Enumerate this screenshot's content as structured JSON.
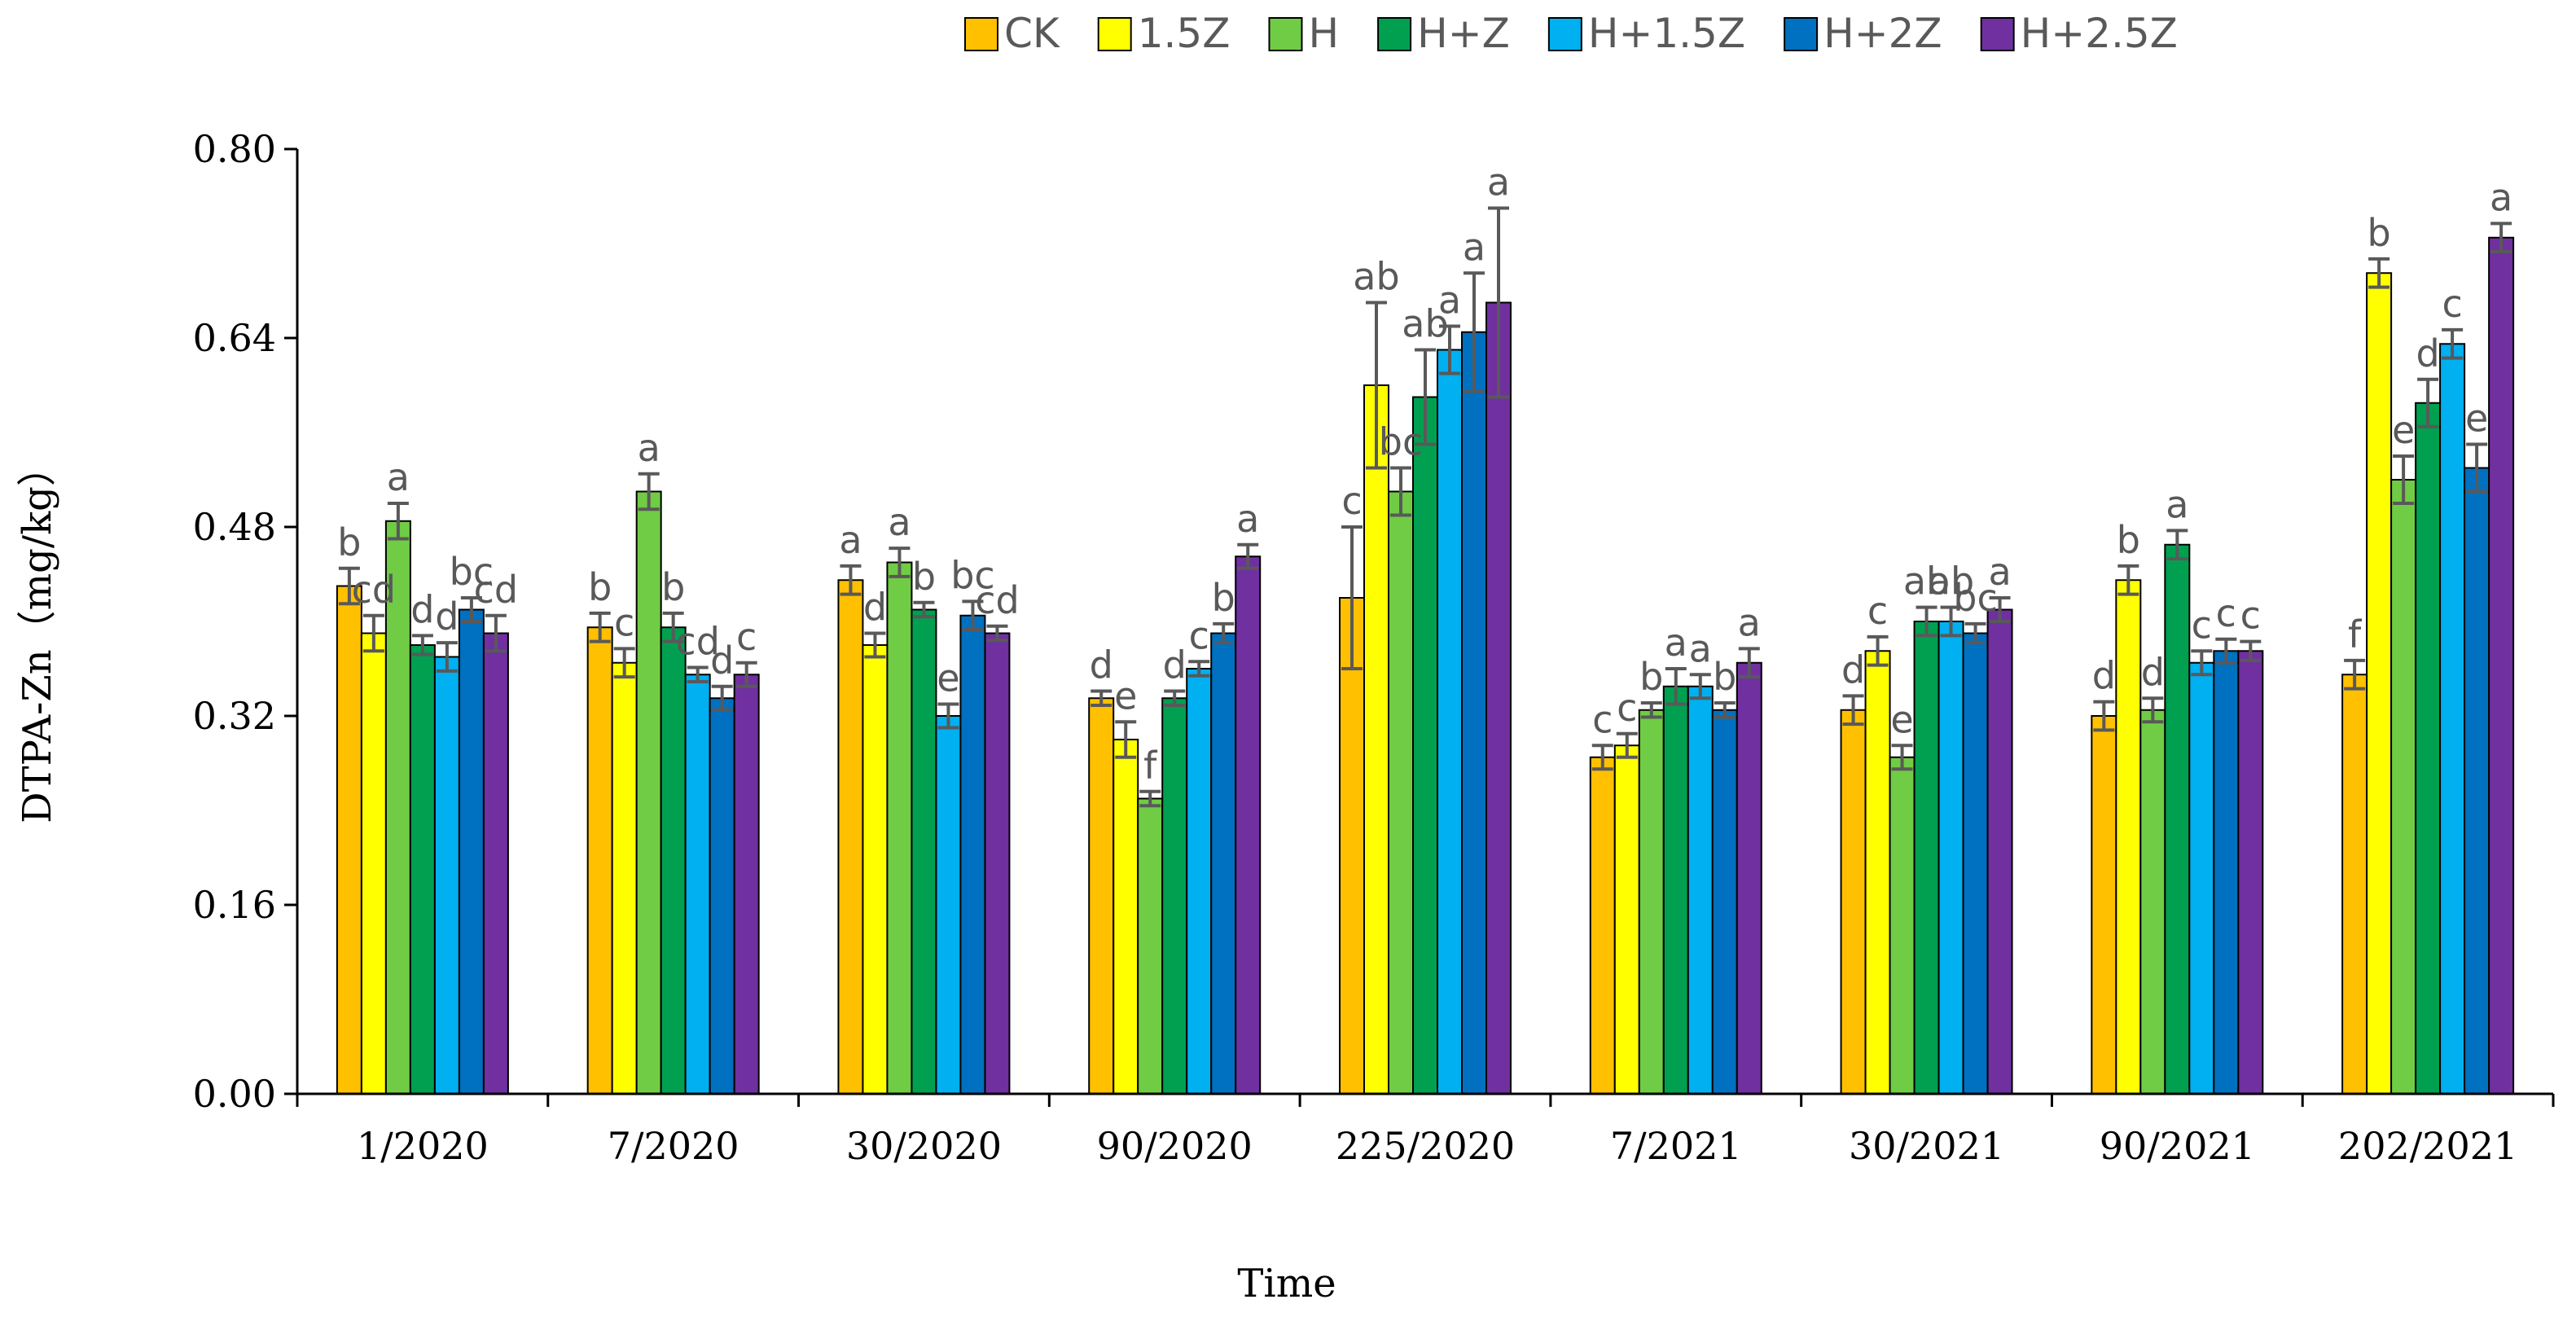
{
  "chart_data": {
    "type": "bar",
    "title": "",
    "xlabel": "Time",
    "ylabel": "DTPA-Zn（mg/kg）",
    "ylim": [
      0,
      0.8
    ],
    "yticks": [
      "0.00",
      "0.16",
      "0.32",
      "0.48",
      "0.64",
      "0.80"
    ],
    "grid": false,
    "legend_position": "top",
    "categories": [
      "1/2020",
      "7/2020",
      "30/2020",
      "90/2020",
      "225/2020",
      "7/2021",
      "30/2021",
      "90/2021",
      "202/2021"
    ],
    "series": [
      {
        "name": "CK",
        "color": "#FFC000",
        "values": [
          0.43,
          0.395,
          0.435,
          0.335,
          0.42,
          0.285,
          0.325,
          0.32,
          0.355
        ],
        "errors": [
          0.015,
          0.012,
          0.012,
          0.006,
          0.06,
          0.01,
          0.012,
          0.012,
          0.012
        ],
        "letters": [
          "b",
          "b",
          "a",
          "d",
          "c",
          "c",
          "d",
          "d",
          "f"
        ]
      },
      {
        "name": "1.5Z",
        "color": "#FFFF00",
        "values": [
          0.39,
          0.365,
          0.38,
          0.3,
          0.6,
          0.295,
          0.375,
          0.435,
          0.695
        ],
        "errors": [
          0.015,
          0.012,
          0.01,
          0.015,
          0.07,
          0.01,
          0.012,
          0.012,
          0.012
        ],
        "letters": [
          "cd",
          "c",
          "d",
          "e",
          "ab",
          "c",
          "c",
          "b",
          "b"
        ]
      },
      {
        "name": "H",
        "color": "#70CC44",
        "values": [
          0.485,
          0.51,
          0.45,
          0.25,
          0.51,
          0.325,
          0.285,
          0.325,
          0.52
        ],
        "errors": [
          0.015,
          0.015,
          0.012,
          0.006,
          0.02,
          0.006,
          0.01,
          0.01,
          0.02
        ],
        "letters": [
          "a",
          "a",
          "a",
          "f",
          "bc",
          "b",
          "e",
          "d",
          "e"
        ]
      },
      {
        "name": "H+Z",
        "color": "#00A050",
        "values": [
          0.38,
          0.395,
          0.41,
          0.335,
          0.59,
          0.345,
          0.4,
          0.465,
          0.585
        ],
        "errors": [
          0.008,
          0.012,
          0.006,
          0.006,
          0.04,
          0.015,
          0.012,
          0.012,
          0.02
        ],
        "letters": [
          "d",
          "b",
          "b",
          "d",
          "ab",
          "a",
          "ab",
          "a",
          "d"
        ]
      },
      {
        "name": "H+1.5Z",
        "color": "#00B0F0",
        "values": [
          0.37,
          0.355,
          0.32,
          0.36,
          0.63,
          0.345,
          0.4,
          0.365,
          0.635
        ],
        "errors": [
          0.012,
          0.006,
          0.01,
          0.006,
          0.02,
          0.01,
          0.012,
          0.01,
          0.012
        ],
        "letters": [
          "d",
          "cd",
          "e",
          "c",
          "a",
          "a",
          "ab",
          "c",
          "c"
        ]
      },
      {
        "name": "H+2Z",
        "color": "#0070C0",
        "values": [
          0.41,
          0.335,
          0.405,
          0.39,
          0.645,
          0.325,
          0.39,
          0.375,
          0.53
        ],
        "errors": [
          0.01,
          0.01,
          0.012,
          0.008,
          0.05,
          0.006,
          0.008,
          0.01,
          0.02
        ],
        "letters": [
          "bc",
          "d",
          "bc",
          "b",
          "a",
          "b",
          "bc",
          "c",
          "e"
        ]
      },
      {
        "name": "H+2.5Z",
        "color": "#7030A0",
        "values": [
          0.39,
          0.355,
          0.39,
          0.455,
          0.67,
          0.365,
          0.41,
          0.375,
          0.725
        ],
        "errors": [
          0.015,
          0.01,
          0.006,
          0.01,
          0.08,
          0.012,
          0.01,
          0.008,
          0.012
        ],
        "letters": [
          "cd",
          "c",
          "cd",
          "a",
          "a",
          "a",
          "a",
          "c",
          "a"
        ]
      }
    ]
  }
}
